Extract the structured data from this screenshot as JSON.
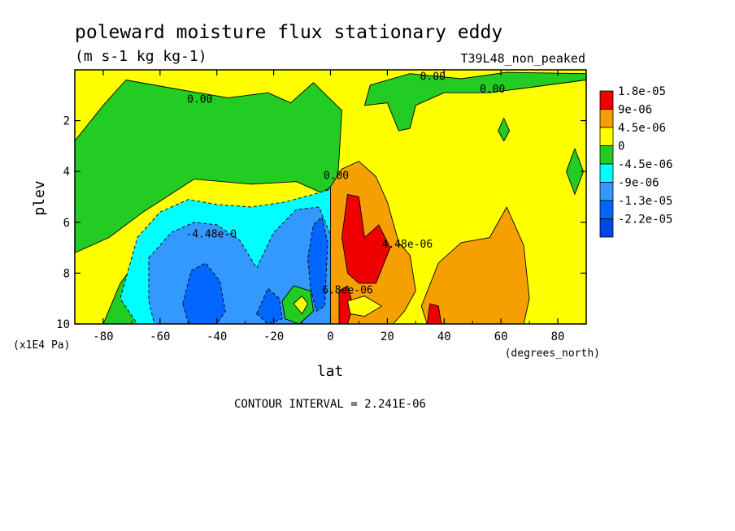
{
  "chart_data": {
    "type": "heatmap",
    "title": "poleward moisture flux stationary eddy",
    "units": "(m s-1 kg kg-1)",
    "run_label": "T39L48_non_peaked",
    "xlabel": "lat",
    "xunits": "(degrees_north)",
    "ylabel": "plev",
    "yunits": "(x1E4 Pa)",
    "xlim": [
      -90,
      90
    ],
    "ylim": [
      10,
      0
    ],
    "x_ticks": [
      -80,
      -60,
      -40,
      -20,
      0,
      20,
      40,
      60,
      80
    ],
    "y_ticks": [
      2,
      4,
      6,
      8,
      10
    ],
    "contour_interval_text": "CONTOUR INTERVAL = 2.241E-06",
    "legend_placement": "right",
    "legend": [
      {
        "label": "1.8e-05",
        "color": "#ee0000"
      },
      {
        "label": "9e-06",
        "color": "#f5a000"
      },
      {
        "label": "4.5e-06",
        "color": "#ffff00"
      },
      {
        "label": "0",
        "color": "#22cc22"
      },
      {
        "label": "-4.5e-06",
        "color": "#00ffff"
      },
      {
        "label": "-9e-06",
        "color": "#3399ff"
      },
      {
        "label": "-1.3e-05",
        "color": "#0066ff"
      },
      {
        "label": "-2.2e-05",
        "color": ""
      }
    ],
    "contour_labels": [
      {
        "text": "0.00",
        "lat": -46,
        "plev": 1.3
      },
      {
        "text": "0.00",
        "lat": 36,
        "plev": 0.4
      },
      {
        "text": "0.00",
        "lat": 57,
        "plev": 0.9
      },
      {
        "text": "0.00",
        "lat": 2,
        "plev": 4.3
      },
      {
        "text": "-4.48e-0",
        "lat": -42,
        "plev": 6.6
      },
      {
        "text": "4.48e-06",
        "lat": 27,
        "plev": 7.0
      },
      {
        "text": "6.8ee-06",
        "lat": 6,
        "plev": 8.8
      }
    ],
    "regions": [
      {
        "class": 3,
        "points": [
          [
            -90,
            2.8
          ],
          [
            -80,
            1.4
          ],
          [
            -72,
            0.4
          ],
          [
            -52,
            0.8
          ],
          [
            -36,
            1.1
          ],
          [
            -22,
            0.9
          ],
          [
            -14,
            1.3
          ],
          [
            -6,
            0.5
          ],
          [
            4,
            1.6
          ],
          [
            3,
            3.5
          ],
          [
            2,
            5.0
          ],
          [
            -4,
            4.8
          ],
          [
            -12,
            4.4
          ],
          [
            -28,
            4.5
          ],
          [
            -48,
            4.3
          ],
          [
            -66,
            5.6
          ],
          [
            -78,
            6.6
          ],
          [
            -90,
            7.2
          ]
        ]
      },
      {
        "class": 3,
        "points": [
          [
            0,
            4.6
          ],
          [
            -10,
            5.4
          ],
          [
            -26,
            5.6
          ],
          [
            -46,
            5.2
          ],
          [
            -62,
            6.6
          ],
          [
            -74,
            8.4
          ],
          [
            -80,
            10
          ],
          [
            0,
            10
          ]
        ]
      },
      {
        "class": 3,
        "points": [
          [
            14,
            0.6
          ],
          [
            28,
            0.15
          ],
          [
            46,
            0.35
          ],
          [
            62,
            0.1
          ],
          [
            90,
            0.15
          ],
          [
            90,
            0.4
          ],
          [
            56,
            0.9
          ],
          [
            40,
            0.9
          ],
          [
            30,
            1.4
          ],
          [
            28,
            2.3
          ],
          [
            24,
            2.4
          ],
          [
            20,
            1.3
          ],
          [
            12,
            1.4
          ]
        ]
      },
      {
        "class": 3,
        "points": [
          [
            59,
            2.4
          ],
          [
            61,
            1.9
          ],
          [
            63,
            2.4
          ],
          [
            61,
            2.8
          ]
        ]
      },
      {
        "class": 3,
        "points": [
          [
            83,
            4.0
          ],
          [
            86,
            3.1
          ],
          [
            89,
            4.0
          ],
          [
            86,
            4.9
          ]
        ]
      },
      {
        "class": 4,
        "points": [
          [
            -68,
            6.6
          ],
          [
            -60,
            5.6
          ],
          [
            -50,
            5.1
          ],
          [
            -40,
            5.3
          ],
          [
            -28,
            5.4
          ],
          [
            -16,
            5.2
          ],
          [
            -6,
            4.9
          ],
          [
            0,
            4.7
          ],
          [
            0,
            10
          ],
          [
            -68,
            10
          ],
          [
            -74,
            9.0
          ]
        ]
      },
      {
        "class": 5,
        "points": [
          [
            -64,
            7.4
          ],
          [
            -56,
            6.4
          ],
          [
            -48,
            6.0
          ],
          [
            -40,
            6.1
          ],
          [
            -32,
            6.7
          ],
          [
            -26,
            7.8
          ],
          [
            -20,
            6.4
          ],
          [
            -12,
            5.5
          ],
          [
            -4,
            5.4
          ],
          [
            0,
            6.5
          ],
          [
            0,
            10
          ],
          [
            -62,
            10
          ],
          [
            -64,
            9.1
          ]
        ]
      },
      {
        "class": 6,
        "points": [
          [
            -52,
            9.2
          ],
          [
            -49,
            7.9
          ],
          [
            -44,
            7.6
          ],
          [
            -39,
            8.3
          ],
          [
            -37,
            9.5
          ],
          [
            -40,
            10
          ],
          [
            -50,
            10
          ]
        ]
      },
      {
        "class": 6,
        "points": [
          [
            -26,
            9.6
          ],
          [
            -22,
            8.6
          ],
          [
            -18,
            9.0
          ],
          [
            -17,
            9.8
          ],
          [
            -22,
            10
          ]
        ]
      },
      {
        "class": 6,
        "points": [
          [
            -8,
            7.4
          ],
          [
            -6,
            6.1
          ],
          [
            -3,
            5.8
          ],
          [
            -1,
            6.8
          ],
          [
            -2,
            9.3
          ],
          [
            -5,
            9.5
          ],
          [
            -7,
            8.6
          ]
        ]
      },
      {
        "class": 3,
        "points": [
          [
            -17,
            9.1
          ],
          [
            -13,
            8.5
          ],
          [
            -7,
            8.7
          ],
          [
            -6,
            9.5
          ],
          [
            -11,
            10
          ],
          [
            -16,
            9.8
          ]
        ]
      },
      {
        "class": 2,
        "points": [
          [
            -13,
            9.2
          ],
          [
            -10,
            8.9
          ],
          [
            -8,
            9.2
          ],
          [
            -10,
            9.6
          ]
        ]
      },
      {
        "class": 1,
        "points": [
          [
            0,
            4.6
          ],
          [
            4,
            3.9
          ],
          [
            10,
            3.6
          ],
          [
            16,
            4.2
          ],
          [
            20,
            5.2
          ],
          [
            24,
            6.8
          ],
          [
            28,
            7.3
          ],
          [
            30,
            8.7
          ],
          [
            26,
            9.5
          ],
          [
            22,
            10
          ],
          [
            0,
            10
          ]
        ]
      },
      {
        "class": 1,
        "points": [
          [
            32,
            9.3
          ],
          [
            38,
            7.6
          ],
          [
            46,
            6.8
          ],
          [
            56,
            6.6
          ],
          [
            62,
            5.4
          ],
          [
            68,
            6.9
          ],
          [
            70,
            9.0
          ],
          [
            68,
            10
          ],
          [
            34,
            10
          ]
        ]
      },
      {
        "class": 0,
        "points": [
          [
            4,
            6.6
          ],
          [
            6,
            4.9
          ],
          [
            10,
            5.0
          ],
          [
            12,
            6.6
          ],
          [
            17,
            6.1
          ],
          [
            21,
            7.0
          ],
          [
            16,
            8.4
          ],
          [
            10,
            8.4
          ],
          [
            6,
            8.0
          ]
        ]
      },
      {
        "class": 0,
        "points": [
          [
            3,
            8.7
          ],
          [
            6,
            8.5
          ],
          [
            8,
            9.3
          ],
          [
            6,
            10
          ],
          [
            3,
            10
          ]
        ]
      },
      {
        "class": 0,
        "points": [
          [
            34,
            10
          ],
          [
            35,
            9.2
          ],
          [
            38,
            9.3
          ],
          [
            39,
            10
          ]
        ]
      },
      {
        "class": 2,
        "points": [
          [
            6,
            9.1
          ],
          [
            12,
            8.9
          ],
          [
            18,
            9.3
          ],
          [
            12,
            9.7
          ],
          [
            7,
            9.6
          ]
        ]
      }
    ]
  }
}
